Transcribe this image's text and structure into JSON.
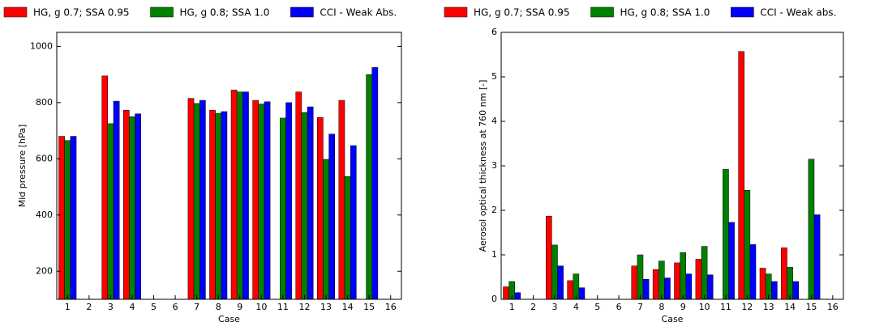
{
  "chart_data": [
    {
      "type": "bar",
      "ylabel": "Mid pressure [hPa]",
      "xlabel": "Case",
      "categories": [
        "1",
        "2",
        "3",
        "4",
        "5",
        "6",
        "7",
        "8",
        "9",
        "10",
        "11",
        "12",
        "13",
        "14",
        "15",
        "16"
      ],
      "ylim": [
        100,
        1050
      ],
      "yticks": [
        200,
        400,
        600,
        800,
        1000
      ],
      "series": [
        {
          "name": "HG, g 0.7; SSA 0.95",
          "color": "#ff0000",
          "values": [
            680,
            null,
            895,
            773,
            null,
            null,
            815,
            773,
            845,
            808,
            null,
            838,
            747,
            808,
            null,
            null
          ]
        },
        {
          "name": "HG, g 0.8; SSA 1.0",
          "color": "#008000",
          "values": [
            665,
            null,
            725,
            750,
            null,
            null,
            797,
            762,
            838,
            795,
            745,
            765,
            598,
            537,
            900,
            null
          ]
        },
        {
          "name": "CCI - Weak Abs.",
          "color": "#0000ff",
          "values": [
            680,
            null,
            805,
            760,
            null,
            null,
            808,
            768,
            838,
            803,
            800,
            785,
            688,
            647,
            925,
            null
          ]
        }
      ]
    },
    {
      "type": "bar",
      "ylabel": "Aerosol optical thickness at 760 nm [-]",
      "xlabel": "Case",
      "categories": [
        "1",
        "2",
        "3",
        "4",
        "5",
        "6",
        "7",
        "8",
        "9",
        "10",
        "11",
        "12",
        "13",
        "14",
        "15",
        "16"
      ],
      "ylim": [
        0,
        6
      ],
      "yticks": [
        0,
        1,
        2,
        3,
        4,
        5,
        6
      ],
      "series": [
        {
          "name": "HG, g 0.7; SSA 0.95",
          "color": "#ff0000",
          "values": [
            0.28,
            null,
            1.87,
            0.42,
            null,
            null,
            0.75,
            0.67,
            0.82,
            0.9,
            null,
            5.57,
            0.7,
            1.16,
            null,
            null
          ]
        },
        {
          "name": "HG, g 0.8; SSA 1.0",
          "color": "#008000",
          "values": [
            0.4,
            null,
            1.22,
            0.57,
            null,
            null,
            1.0,
            0.86,
            1.05,
            1.19,
            2.92,
            2.45,
            0.57,
            0.72,
            3.15,
            null
          ]
        },
        {
          "name": "CCI - Weak abs.",
          "color": "#0000ff",
          "values": [
            0.15,
            null,
            0.75,
            0.26,
            null,
            null,
            0.45,
            0.48,
            0.57,
            0.55,
            1.73,
            1.23,
            0.4,
            0.4,
            1.9,
            null
          ]
        }
      ]
    }
  ]
}
